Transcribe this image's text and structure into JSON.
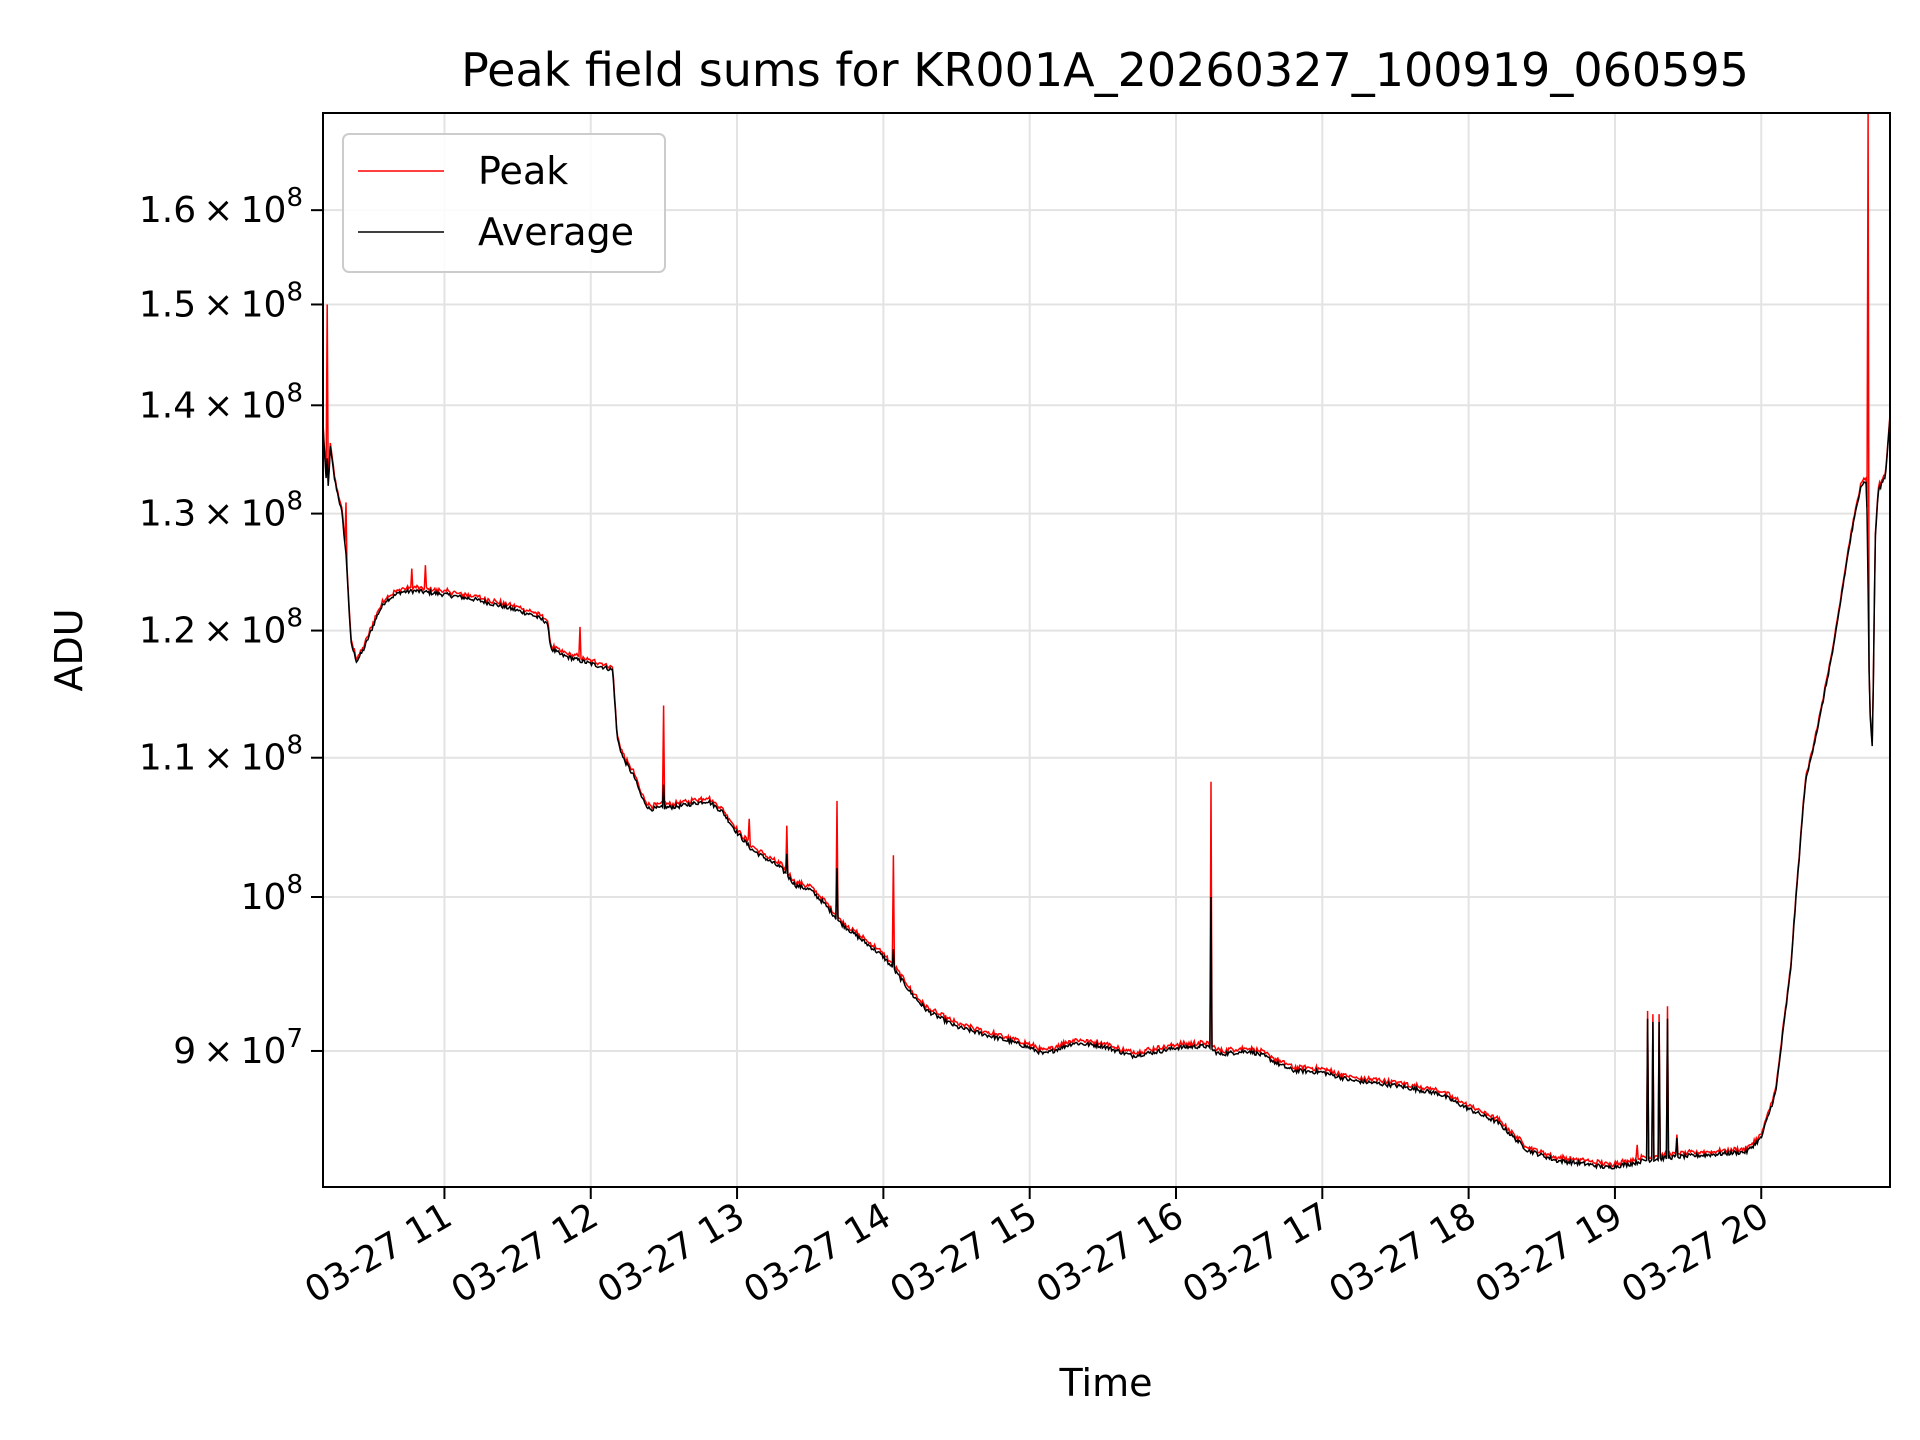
{
  "chart_data": {
    "type": "line",
    "title": "Peak field sums for KR001A_20260327_100919_060595",
    "xlabel": "Time",
    "ylabel": "ADU",
    "y_scale": "log",
    "xlim": [
      10.17,
      20.88
    ],
    "ylim": [
      82000000,
      171000000
    ],
    "grid": true,
    "legend_location": "upper left",
    "x_ticks": [
      {
        "value": 11,
        "label": "03-27 11"
      },
      {
        "value": 12,
        "label": "03-27 12"
      },
      {
        "value": 13,
        "label": "03-27 13"
      },
      {
        "value": 14,
        "label": "03-27 14"
      },
      {
        "value": 15,
        "label": "03-27 15"
      },
      {
        "value": 16,
        "label": "03-27 16"
      },
      {
        "value": 17,
        "label": "03-27 17"
      },
      {
        "value": 18,
        "label": "03-27 18"
      },
      {
        "value": 19,
        "label": "03-27 19"
      },
      {
        "value": 20,
        "label": "03-27 20"
      }
    ],
    "y_ticks": [
      {
        "value": 90000000,
        "mantissa": "9",
        "exponent": "7"
      },
      {
        "value": 100000000,
        "mantissa": "",
        "exponent": "8"
      },
      {
        "value": 110000000,
        "mantissa": "1.1",
        "exponent": "8"
      },
      {
        "value": 120000000,
        "mantissa": "1.2",
        "exponent": "8"
      },
      {
        "value": 130000000,
        "mantissa": "1.3",
        "exponent": "8"
      },
      {
        "value": 140000000,
        "mantissa": "1.4",
        "exponent": "8"
      },
      {
        "value": 150000000,
        "mantissa": "1.5",
        "exponent": "8"
      },
      {
        "value": 160000000,
        "mantissa": "1.6",
        "exponent": "8"
      }
    ],
    "baseline": [
      [
        10.17,
        138000000
      ],
      [
        10.2,
        131000000
      ],
      [
        10.22,
        136000000
      ],
      [
        10.25,
        133000000
      ],
      [
        10.3,
        130000000
      ],
      [
        10.33,
        126000000
      ],
      [
        10.36,
        119000000
      ],
      [
        10.4,
        117500000
      ],
      [
        10.45,
        118500000
      ],
      [
        10.5,
        120000000
      ],
      [
        10.55,
        121500000
      ],
      [
        10.6,
        122500000
      ],
      [
        10.7,
        123200000
      ],
      [
        10.8,
        123300000
      ],
      [
        11.0,
        123000000
      ],
      [
        11.2,
        122600000
      ],
      [
        11.4,
        122000000
      ],
      [
        11.6,
        121300000
      ],
      [
        11.7,
        120700000
      ],
      [
        11.73,
        118500000
      ],
      [
        11.8,
        118000000
      ],
      [
        12.0,
        117300000
      ],
      [
        12.1,
        117000000
      ],
      [
        12.15,
        116800000
      ],
      [
        12.18,
        111500000
      ],
      [
        12.22,
        110000000
      ],
      [
        12.3,
        108500000
      ],
      [
        12.35,
        107000000
      ],
      [
        12.4,
        106200000
      ],
      [
        12.5,
        106300000
      ],
      [
        12.6,
        106400000
      ],
      [
        12.8,
        106800000
      ],
      [
        12.9,
        106000000
      ],
      [
        13.0,
        104500000
      ],
      [
        13.1,
        103300000
      ],
      [
        13.3,
        102000000
      ],
      [
        13.4,
        100800000
      ],
      [
        13.5,
        100500000
      ],
      [
        13.6,
        99500000
      ],
      [
        13.7,
        98300000
      ],
      [
        13.8,
        97500000
      ],
      [
        14.0,
        96000000
      ],
      [
        14.1,
        94800000
      ],
      [
        14.2,
        93500000
      ],
      [
        14.3,
        92500000
      ],
      [
        14.4,
        92000000
      ],
      [
        14.5,
        91500000
      ],
      [
        14.7,
        91000000
      ],
      [
        14.9,
        90500000
      ],
      [
        15.0,
        90200000
      ],
      [
        15.1,
        89800000
      ],
      [
        15.3,
        90500000
      ],
      [
        15.5,
        90300000
      ],
      [
        15.7,
        89700000
      ],
      [
        15.9,
        90000000
      ],
      [
        16.0,
        90200000
      ],
      [
        16.2,
        90300000
      ],
      [
        16.3,
        89800000
      ],
      [
        16.5,
        90000000
      ],
      [
        16.6,
        89700000
      ],
      [
        16.7,
        89200000
      ],
      [
        16.8,
        88800000
      ],
      [
        17.0,
        88700000
      ],
      [
        17.2,
        88200000
      ],
      [
        17.5,
        87900000
      ],
      [
        17.8,
        87400000
      ],
      [
        18.0,
        86500000
      ],
      [
        18.2,
        85700000
      ],
      [
        18.4,
        84100000
      ],
      [
        18.6,
        83500000
      ],
      [
        18.8,
        83300000
      ],
      [
        18.95,
        83100000
      ],
      [
        19.1,
        83300000
      ],
      [
        19.2,
        83500000
      ],
      [
        19.4,
        83700000
      ],
      [
        19.6,
        83800000
      ],
      [
        19.9,
        84000000
      ],
      [
        20.0,
        84800000
      ],
      [
        20.1,
        87500000
      ],
      [
        20.2,
        95000000
      ],
      [
        20.3,
        108000000
      ],
      [
        20.4,
        113000000
      ],
      [
        20.5,
        119000000
      ],
      [
        20.6,
        127000000
      ],
      [
        20.68,
        132500000
      ],
      [
        20.72,
        133000000
      ],
      [
        20.74,
        114000000
      ],
      [
        20.76,
        110500000
      ],
      [
        20.78,
        128000000
      ],
      [
        20.8,
        132000000
      ],
      [
        20.85,
        133500000
      ],
      [
        20.88,
        139000000
      ]
    ],
    "series": [
      {
        "name": "Peak",
        "color": "#ff0000",
        "spikes": [
          [
            10.2,
            150000000
          ],
          [
            10.33,
            131000000
          ],
          [
            10.78,
            125200000
          ],
          [
            10.87,
            125500000
          ],
          [
            11.93,
            120300000
          ],
          [
            12.5,
            114000000
          ],
          [
            13.08,
            105500000
          ],
          [
            13.34,
            105000000
          ],
          [
            13.68,
            106800000
          ],
          [
            14.07,
            102900000
          ],
          [
            16.24,
            108200000
          ],
          [
            18.03,
            86700000
          ],
          [
            19.15,
            84400000
          ],
          [
            19.22,
            92500000
          ],
          [
            19.26,
            92300000
          ],
          [
            19.3,
            92300000
          ],
          [
            19.36,
            92800000
          ],
          [
            19.42,
            85000000
          ],
          [
            20.73,
            171000000
          ]
        ]
      },
      {
        "name": "Average",
        "color": "#000000",
        "spikes": [
          [
            10.2,
            135000000
          ],
          [
            12.5,
            108000000
          ],
          [
            13.34,
            103000000
          ],
          [
            13.68,
            102000000
          ],
          [
            14.07,
            96500000
          ],
          [
            16.24,
            100000000
          ],
          [
            19.22,
            92000000
          ],
          [
            19.26,
            91800000
          ],
          [
            19.3,
            91800000
          ],
          [
            19.36,
            92000000
          ],
          [
            19.42,
            84800000
          ]
        ]
      }
    ]
  }
}
